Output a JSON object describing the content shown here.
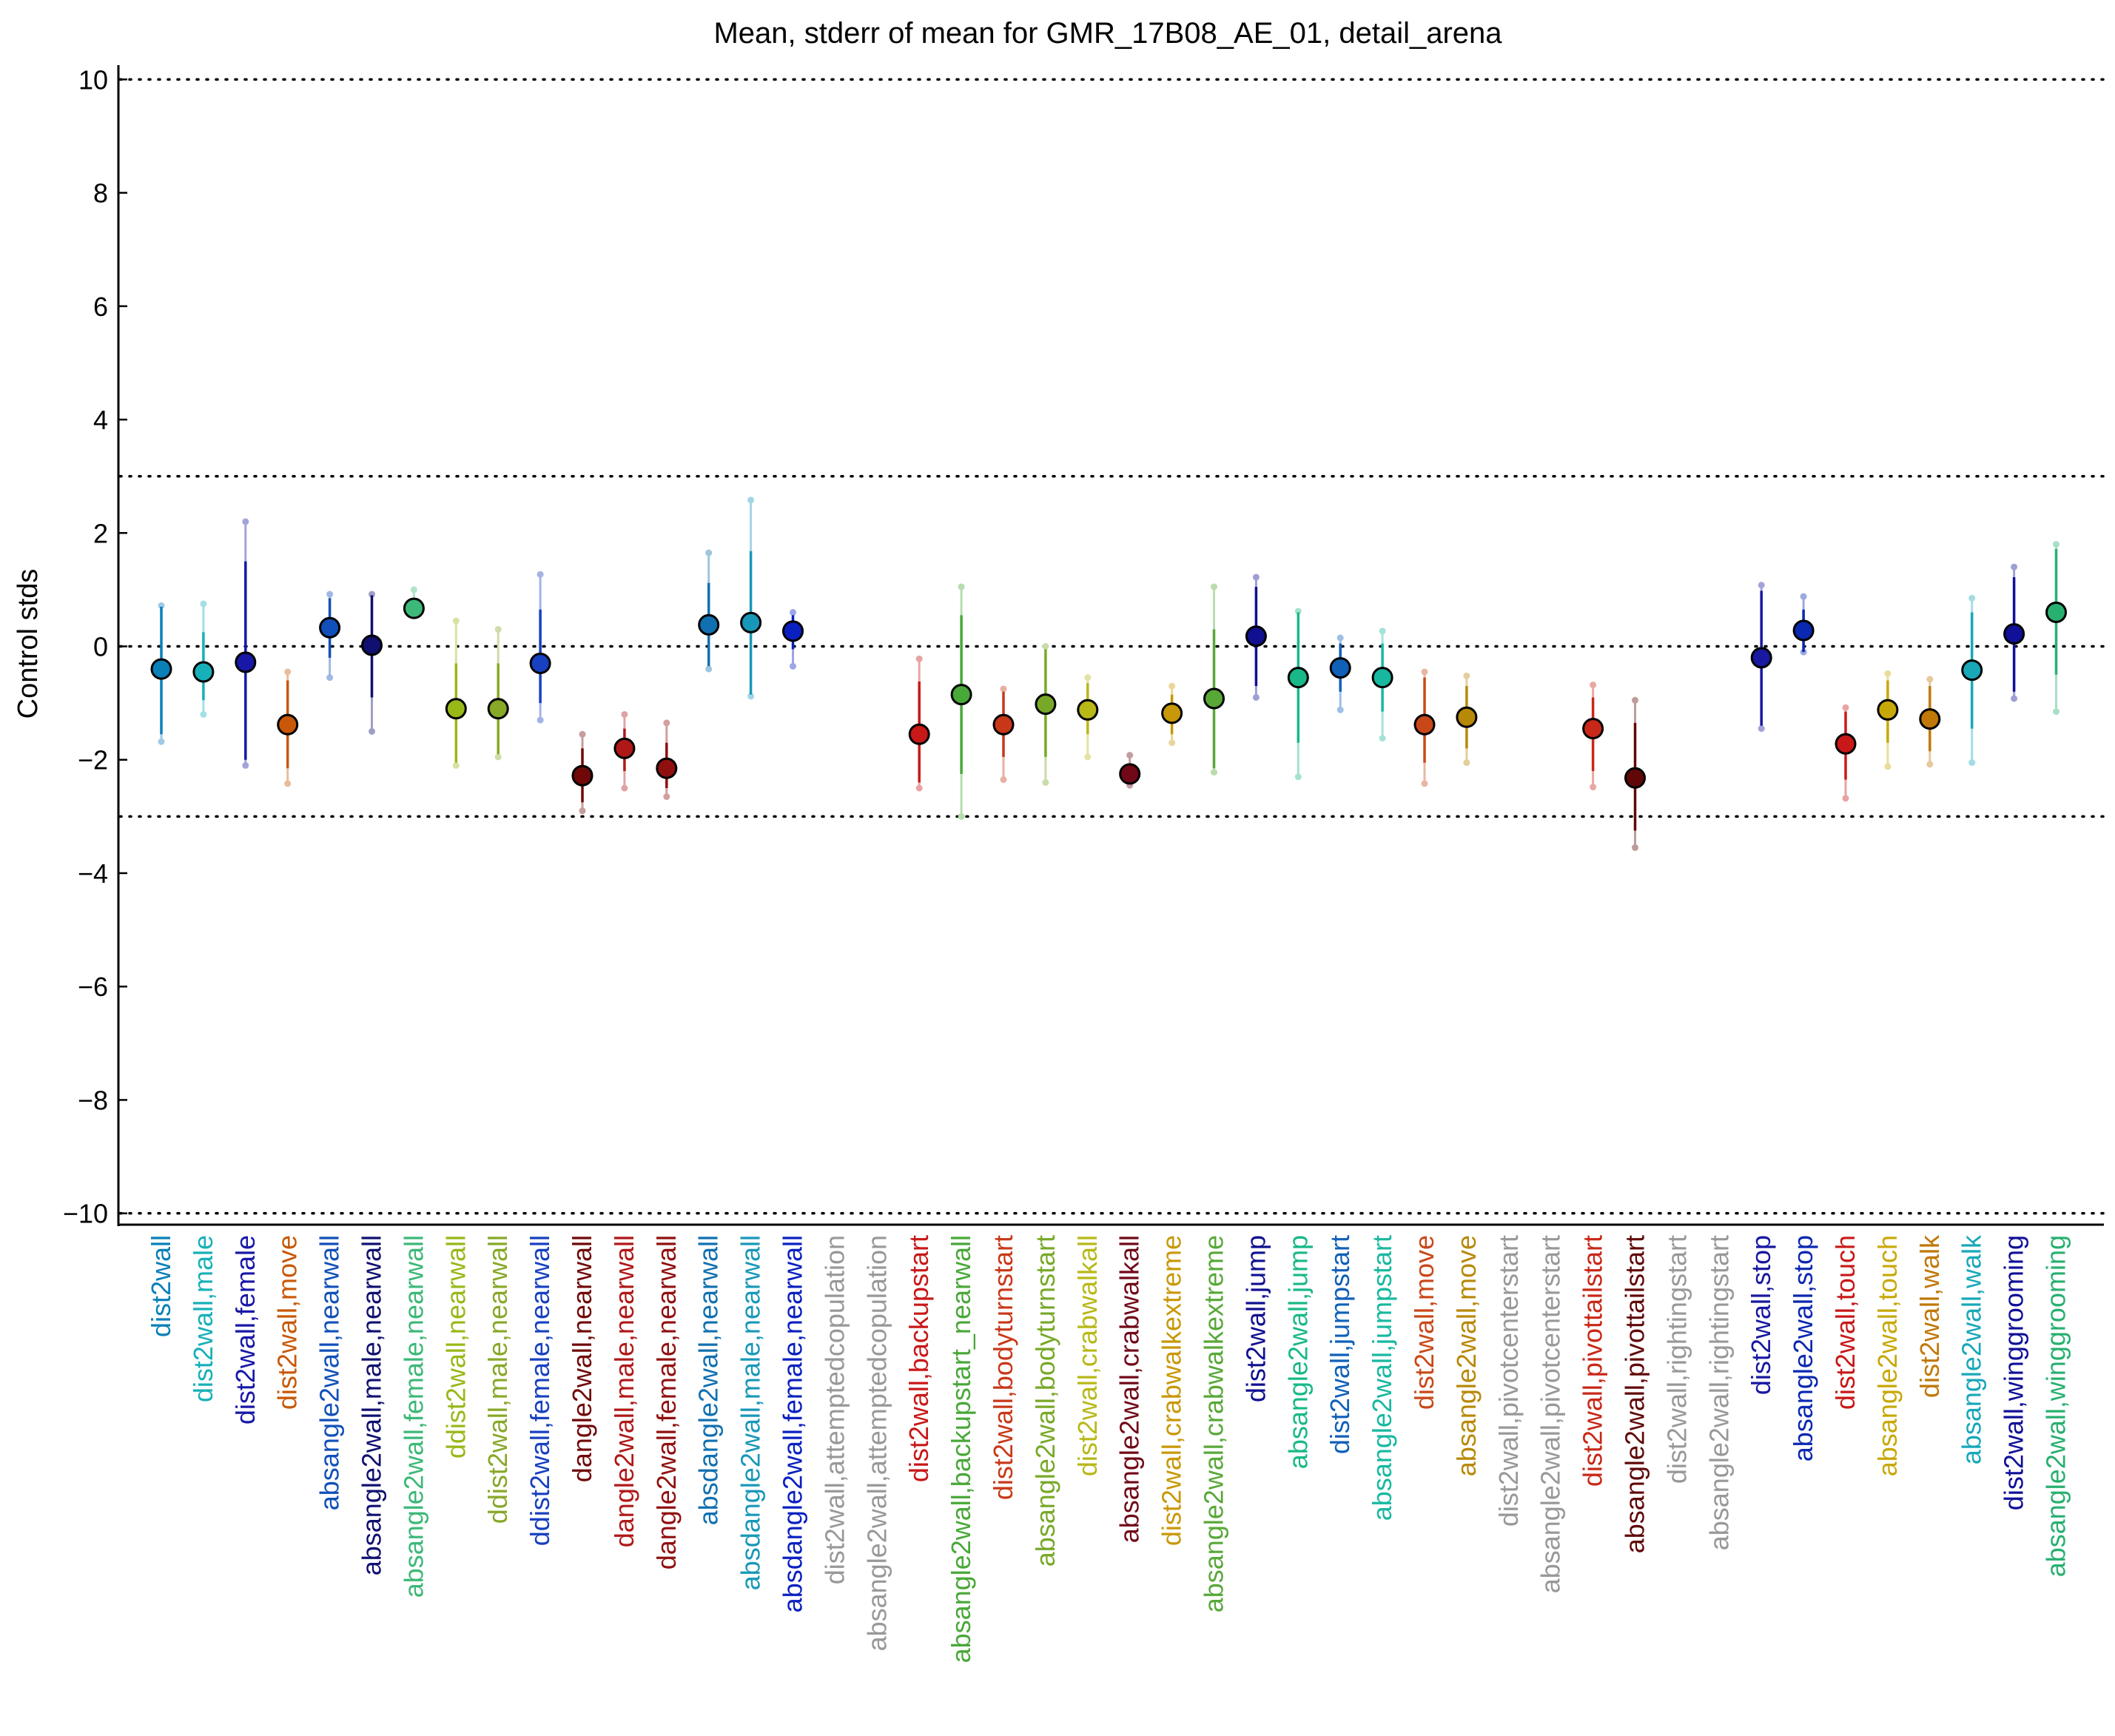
{
  "chart_data": {
    "type": "scatter",
    "title": "Mean, stderr of mean for GMR_17B08_AE_01, detail_arena",
    "xlabel": "",
    "ylabel": "Control stds",
    "ylim": [
      -10.2,
      10.2
    ],
    "yticks": [
      10,
      8,
      6,
      4,
      2,
      0,
      -2,
      -4,
      -6,
      -8,
      -10
    ],
    "ytick_labels": [
      "10",
      "8",
      "6",
      "4",
      "2",
      "0",
      "−2",
      "−4",
      "−6",
      "−8",
      "−10"
    ],
    "reference_lines": [
      10,
      3,
      0,
      -3,
      -10
    ],
    "grid": false,
    "legend": "none",
    "points": [
      {
        "label": "dist2wall",
        "mean": -0.4,
        "sem_low": -1.55,
        "sem_high": 0.7,
        "range_low": -1.68,
        "range_high": 0.72,
        "color": "#0A80B8"
      },
      {
        "label": "dist2wall,male",
        "mean": -0.45,
        "sem_low": -0.95,
        "sem_high": 0.25,
        "range_low": -1.2,
        "range_high": 0.75,
        "color": "#18B0B8"
      },
      {
        "label": "dist2wall,female",
        "mean": -0.28,
        "sem_low": -2.0,
        "sem_high": 1.5,
        "range_low": -2.1,
        "range_high": 2.2,
        "color": "#1818A8"
      },
      {
        "label": "dist2wall,move",
        "mean": -1.38,
        "sem_low": -2.15,
        "sem_high": -0.6,
        "range_low": -2.42,
        "range_high": -0.45,
        "color": "#C85808"
      },
      {
        "label": "absangle2wall,nearwall",
        "mean": 0.33,
        "sem_low": -0.2,
        "sem_high": 0.85,
        "range_low": -0.55,
        "range_high": 0.92,
        "color": "#1050B8"
      },
      {
        "label": "absangle2wall,male,nearwall",
        "mean": 0.02,
        "sem_low": -0.9,
        "sem_high": 0.9,
        "range_low": -1.5,
        "range_high": 0.92,
        "color": "#101070"
      },
      {
        "label": "absangle2wall,female,nearwall",
        "mean": 0.67,
        "sem_low": 0.58,
        "sem_high": 0.78,
        "range_low": 0.55,
        "range_high": 1.0,
        "color": "#3CB878"
      },
      {
        "label": "ddist2wall,nearwall",
        "mean": -1.1,
        "sem_low": -2.05,
        "sem_high": -0.3,
        "range_low": -2.1,
        "range_high": 0.45,
        "color": "#98B818"
      },
      {
        "label": "ddist2wall,male,nearwall",
        "mean": -1.1,
        "sem_low": -1.9,
        "sem_high": -0.3,
        "range_low": -1.95,
        "range_high": 0.3,
        "color": "#88A828"
      },
      {
        "label": "ddist2wall,female,nearwall",
        "mean": -0.3,
        "sem_low": -1.0,
        "sem_high": 0.65,
        "range_low": -1.3,
        "range_high": 1.27,
        "color": "#1840C0"
      },
      {
        "label": "dangle2wall,nearwall",
        "mean": -2.28,
        "sem_low": -2.75,
        "sem_high": -1.8,
        "range_low": -2.9,
        "range_high": -1.55,
        "color": "#700808"
      },
      {
        "label": "dangle2wall,male,nearwall",
        "mean": -1.8,
        "sem_low": -2.2,
        "sem_high": -1.45,
        "range_low": -2.5,
        "range_high": -1.2,
        "color": "#B01818"
      },
      {
        "label": "dangle2wall,female,nearwall",
        "mean": -2.15,
        "sem_low": -2.5,
        "sem_high": -1.7,
        "range_low": -2.65,
        "range_high": -1.35,
        "color": "#901010"
      },
      {
        "label": "absdangle2wall,nearwall",
        "mean": 0.38,
        "sem_low": -0.35,
        "sem_high": 1.12,
        "range_low": -0.4,
        "range_high": 1.65,
        "color": "#1070B0"
      },
      {
        "label": "absdangle2wall,male,nearwall",
        "mean": 0.42,
        "sem_low": -0.85,
        "sem_high": 1.68,
        "range_low": -0.88,
        "range_high": 2.58,
        "color": "#1898B8"
      },
      {
        "label": "absdangle2wall,female,nearwall",
        "mean": 0.27,
        "sem_low": -0.05,
        "sem_high": 0.55,
        "range_low": -0.35,
        "range_high": 0.6,
        "color": "#0A20C0"
      },
      {
        "label": "dist2wall,attemptedcopulation",
        "mean": null,
        "color": "#989898"
      },
      {
        "label": "absangle2wall,attemptedcopulation",
        "mean": null,
        "color": "#989898"
      },
      {
        "label": "dist2wall,backupstart",
        "mean": -1.55,
        "sem_low": -2.4,
        "sem_high": -0.62,
        "range_low": -2.5,
        "range_high": -0.22,
        "color": "#C81818"
      },
      {
        "label": "absangle2wall,backupstart_nearwall",
        "mean": -0.85,
        "sem_low": -2.25,
        "sem_high": 0.55,
        "range_low": -3.0,
        "range_high": 1.05,
        "color": "#48A838"
      },
      {
        "label": "dist2wall,bodyturnstart",
        "mean": -1.38,
        "sem_low": -1.95,
        "sem_high": -0.8,
        "range_low": -2.35,
        "range_high": -0.75,
        "color": "#C83818"
      },
      {
        "label": "absangle2wall,bodyturnstart",
        "mean": -1.02,
        "sem_low": -1.95,
        "sem_high": -0.05,
        "range_low": -2.4,
        "range_high": 0.0,
        "color": "#78A828"
      },
      {
        "label": "dist2wall,crabwalkall",
        "mean": -1.12,
        "sem_low": -1.55,
        "sem_high": -0.65,
        "range_low": -1.95,
        "range_high": -0.55,
        "color": "#B8B818"
      },
      {
        "label": "absangle2wall,crabwalkall",
        "mean": -2.25,
        "sem_low": -2.38,
        "sem_high": -2.1,
        "range_low": -2.45,
        "range_high": -1.92,
        "color": "#700818"
      },
      {
        "label": "dist2wall,crabwalkextreme",
        "mean": -1.18,
        "sem_low": -1.55,
        "sem_high": -0.85,
        "range_low": -1.7,
        "range_high": -0.7,
        "color": "#C89808"
      },
      {
        "label": "absangle2wall,crabwalkextreme",
        "mean": -0.92,
        "sem_low": -2.15,
        "sem_high": 0.3,
        "range_low": -2.22,
        "range_high": 1.05,
        "color": "#58A838"
      },
      {
        "label": "dist2wall,jump",
        "mean": 0.18,
        "sem_low": -0.7,
        "sem_high": 1.05,
        "range_low": -0.9,
        "range_high": 1.22,
        "color": "#101090"
      },
      {
        "label": "absangle2wall,jump",
        "mean": -0.55,
        "sem_low": -1.7,
        "sem_high": 0.6,
        "range_low": -2.3,
        "range_high": 0.62,
        "color": "#18B888"
      },
      {
        "label": "dist2wall,jumpstart",
        "mean": -0.38,
        "sem_low": -0.8,
        "sem_high": 0.05,
        "range_low": -1.12,
        "range_high": 0.15,
        "color": "#1060B8"
      },
      {
        "label": "absangle2wall,jumpstart",
        "mean": -0.55,
        "sem_low": -1.15,
        "sem_high": 0.05,
        "range_low": -1.62,
        "range_high": 0.27,
        "color": "#18B8A0"
      },
      {
        "label": "dist2wall,move",
        "mean": -1.38,
        "sem_low": -2.05,
        "sem_high": -0.55,
        "range_low": -2.42,
        "range_high": -0.45,
        "color": "#C84818"
      },
      {
        "label": "absangle2wall,move",
        "mean": -1.25,
        "sem_low": -1.8,
        "sem_high": -0.7,
        "range_low": -2.05,
        "range_high": -0.52,
        "color": "#B88808"
      },
      {
        "label": "dist2wall,pivotcenterstart",
        "mean": null,
        "color": "#989898"
      },
      {
        "label": "absangle2wall,pivotcenterstart",
        "mean": null,
        "color": "#989898"
      },
      {
        "label": "dist2wall,pivottailstart",
        "mean": -1.45,
        "sem_low": -2.2,
        "sem_high": -0.9,
        "range_low": -2.48,
        "range_high": -0.68,
        "color": "#C82818"
      },
      {
        "label": "absangle2wall,pivottailstart",
        "mean": -2.32,
        "sem_low": -3.25,
        "sem_high": -1.35,
        "range_low": -3.55,
        "range_high": -0.95,
        "color": "#600808"
      },
      {
        "label": "dist2wall,rightingstart",
        "mean": null,
        "color": "#989898"
      },
      {
        "label": "absangle2wall,rightingstart",
        "mean": null,
        "color": "#989898"
      },
      {
        "label": "dist2wall,stop",
        "mean": -0.2,
        "sem_low": -1.4,
        "sem_high": 0.98,
        "range_low": -1.45,
        "range_high": 1.08,
        "color": "#1818A0"
      },
      {
        "label": "absangle2wall,stop",
        "mean": 0.28,
        "sem_low": -0.1,
        "sem_high": 0.65,
        "range_low": -0.1,
        "range_high": 0.88,
        "color": "#0A28B0"
      },
      {
        "label": "dist2wall,touch",
        "mean": -1.72,
        "sem_low": -2.35,
        "sem_high": -1.15,
        "range_low": -2.68,
        "range_high": -1.08,
        "color": "#C81818"
      },
      {
        "label": "absangle2wall,touch",
        "mean": -1.12,
        "sem_low": -1.7,
        "sem_high": -0.6,
        "range_low": -2.12,
        "range_high": -0.48,
        "color": "#C8A808"
      },
      {
        "label": "dist2wall,walk",
        "mean": -1.28,
        "sem_low": -1.85,
        "sem_high": -0.7,
        "range_low": -2.08,
        "range_high": -0.58,
        "color": "#C07808"
      },
      {
        "label": "absangle2wall,walk",
        "mean": -0.42,
        "sem_low": -1.45,
        "sem_high": 0.6,
        "range_low": -2.05,
        "range_high": 0.85,
        "color": "#18A8B8"
      },
      {
        "label": "dist2wall,winggrooming",
        "mean": 0.22,
        "sem_low": -0.8,
        "sem_high": 1.22,
        "range_low": -0.92,
        "range_high": 1.4,
        "color": "#101098"
      },
      {
        "label": "absangle2wall,winggrooming",
        "mean": 0.6,
        "sem_low": -0.5,
        "sem_high": 1.72,
        "range_low": -1.15,
        "range_high": 1.8,
        "color": "#28B070"
      }
    ]
  }
}
